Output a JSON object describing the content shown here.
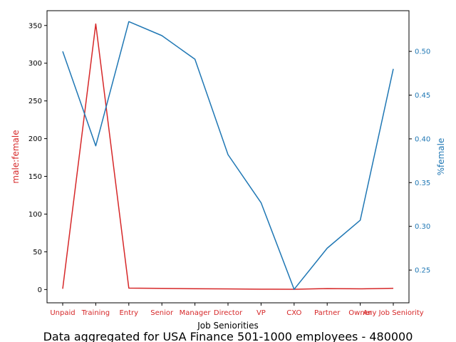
{
  "chart_data": {
    "type": "line",
    "xlabel": "Job Seniorities",
    "caption": "Data aggregated for USA Finance 501-1000 employees - 480000",
    "categories": [
      "Unpaid",
      "Training",
      "Entry",
      "Senior",
      "Manager",
      "Director",
      "VP",
      "CXO",
      "Partner",
      "Owner",
      "Any Job Seniority"
    ],
    "left_axis": {
      "label": "male:female",
      "color": "#d62728",
      "ylim": [
        -17.6,
        369.6
      ],
      "ticks": [
        0,
        50,
        100,
        150,
        200,
        250,
        300,
        350
      ]
    },
    "right_axis": {
      "label": "%female",
      "color": "#1f77b4",
      "ylim": [
        0.2126,
        0.5465
      ],
      "ticks": [
        "0.25",
        "0.30",
        "0.35",
        "0.40",
        "0.45",
        "0.50"
      ],
      "tick_values": [
        0.25,
        0.3,
        0.35,
        0.4,
        0.45,
        0.5
      ]
    },
    "series": [
      {
        "axis": "left",
        "color": "#d62728",
        "values": [
          1.0,
          352.0,
          1.9,
          1.5,
          1.1,
          0.8,
          0.5,
          0.4,
          1.3,
          0.9,
          1.6
        ]
      },
      {
        "axis": "right",
        "color": "#1f77b4",
        "values": [
          0.5,
          0.392,
          0.534,
          0.518,
          0.491,
          0.382,
          0.327,
          0.228,
          0.275,
          0.307,
          0.48
        ]
      }
    ],
    "grid": false
  }
}
